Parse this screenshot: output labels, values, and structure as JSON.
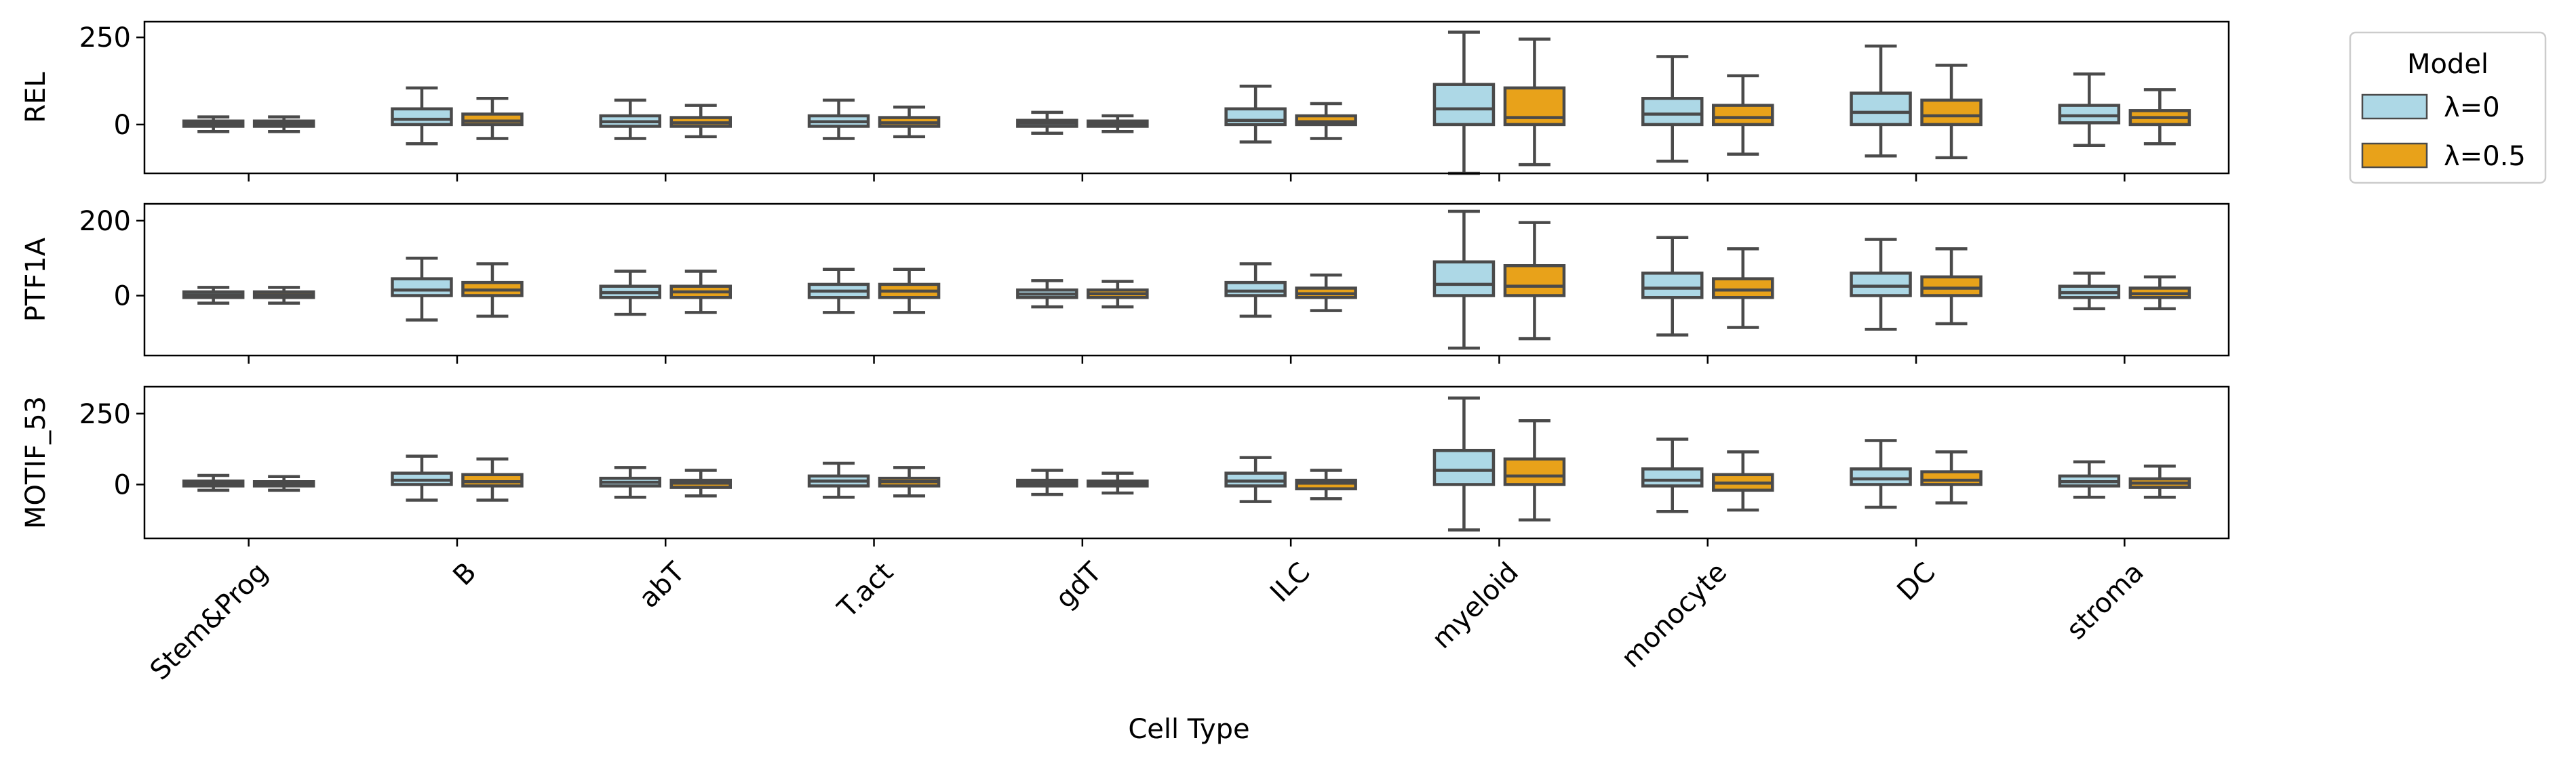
{
  "chart_data": {
    "type": "box",
    "xlabel": "Cell Type",
    "categories": [
      "Stem&Prog",
      "B",
      "abT",
      "T.act",
      "gdT",
      "ILC",
      "myeloid",
      "monocyte",
      "DC",
      "stroma"
    ],
    "legend": {
      "title": "Model",
      "position": "upper-right-outside",
      "entries": [
        {
          "label": "λ=0",
          "color": "#add8e6"
        },
        {
          "label": "λ=0.5",
          "color": "#e8a21a"
        }
      ]
    },
    "series_colors": [
      "#add8e6",
      "#e8a21a"
    ],
    "panels": [
      {
        "ylabel": "REL",
        "ylim": [
          -140,
          295
        ],
        "yticks": [
          0,
          250
        ],
        "boxes": [
          [
            [
              -20,
              -5,
              2,
              10,
              22
            ],
            [
              -20,
              -5,
              2,
              10,
              22
            ]
          ],
          [
            [
              -55,
              0,
              15,
              45,
              105
            ],
            [
              -40,
              0,
              10,
              30,
              75
            ]
          ],
          [
            [
              -40,
              -5,
              8,
              25,
              70
            ],
            [
              -35,
              -5,
              5,
              20,
              55
            ]
          ],
          [
            [
              -40,
              -5,
              8,
              25,
              70
            ],
            [
              -35,
              -5,
              5,
              20,
              50
            ]
          ],
          [
            [
              -25,
              -5,
              4,
              12,
              35
            ],
            [
              -20,
              -5,
              3,
              10,
              25
            ]
          ],
          [
            [
              -50,
              0,
              12,
              45,
              110
            ],
            [
              -40,
              0,
              8,
              25,
              60
            ]
          ],
          [
            [
              -140,
              0,
              45,
              115,
              265
            ],
            [
              -115,
              0,
              20,
              105,
              245
            ]
          ],
          [
            [
              -105,
              0,
              30,
              75,
              195
            ],
            [
              -85,
              0,
              20,
              55,
              140
            ]
          ],
          [
            [
              -90,
              0,
              35,
              90,
              225
            ],
            [
              -95,
              0,
              25,
              70,
              170
            ]
          ],
          [
            [
              -60,
              5,
              25,
              55,
              145
            ],
            [
              -55,
              0,
              20,
              40,
              100
            ]
          ]
        ]
      },
      {
        "ylabel": "PTF1A",
        "ylim": [
          -160,
          245
        ],
        "yticks": [
          0,
          200
        ],
        "boxes": [
          [
            [
              -20,
              -5,
              2,
              10,
              22
            ],
            [
              -20,
              -5,
              2,
              10,
              22
            ]
          ],
          [
            [
              -65,
              0,
              15,
              45,
              100
            ],
            [
              -55,
              0,
              15,
              35,
              85
            ]
          ],
          [
            [
              -50,
              -5,
              8,
              25,
              65
            ],
            [
              -45,
              -5,
              10,
              25,
              65
            ]
          ],
          [
            [
              -45,
              -5,
              12,
              30,
              70
            ],
            [
              -45,
              -5,
              12,
              30,
              70
            ]
          ],
          [
            [
              -30,
              -5,
              4,
              15,
              40
            ],
            [
              -30,
              -5,
              5,
              15,
              38
            ]
          ],
          [
            [
              -55,
              0,
              12,
              35,
              85
            ],
            [
              -40,
              -5,
              5,
              20,
              55
            ]
          ],
          [
            [
              -140,
              0,
              30,
              90,
              225
            ],
            [
              -115,
              0,
              25,
              80,
              195
            ]
          ],
          [
            [
              -105,
              -5,
              20,
              60,
              155
            ],
            [
              -85,
              -5,
              15,
              45,
              125
            ]
          ],
          [
            [
              -90,
              0,
              25,
              60,
              150
            ],
            [
              -75,
              0,
              20,
              50,
              125
            ]
          ],
          [
            [
              -35,
              -5,
              8,
              25,
              60
            ],
            [
              -35,
              -5,
              5,
              20,
              50
            ]
          ]
        ]
      },
      {
        "ylabel": "MOTIF_53",
        "ylim": [
          -190,
          345
        ],
        "yticks": [
          0,
          250
        ],
        "boxes": [
          [
            [
              -20,
              -5,
              5,
              12,
              32
            ],
            [
              -20,
              -5,
              3,
              10,
              28
            ]
          ],
          [
            [
              -55,
              0,
              15,
              40,
              100
            ],
            [
              -55,
              -5,
              10,
              35,
              90
            ]
          ],
          [
            [
              -45,
              -5,
              8,
              22,
              60
            ],
            [
              -40,
              -10,
              5,
              15,
              50
            ]
          ],
          [
            [
              -45,
              -5,
              12,
              30,
              75
            ],
            [
              -40,
              -5,
              10,
              22,
              60
            ]
          ],
          [
            [
              -35,
              -5,
              5,
              15,
              50
            ],
            [
              -30,
              -5,
              5,
              12,
              40
            ]
          ],
          [
            [
              -60,
              -5,
              12,
              40,
              95
            ],
            [
              -50,
              -15,
              5,
              15,
              50
            ]
          ],
          [
            [
              -160,
              0,
              50,
              120,
              305
            ],
            [
              -125,
              0,
              30,
              90,
              225
            ]
          ],
          [
            [
              -95,
              -5,
              15,
              55,
              160
            ],
            [
              -90,
              -20,
              5,
              35,
              115
            ]
          ],
          [
            [
              -80,
              0,
              20,
              55,
              155
            ],
            [
              -65,
              0,
              15,
              45,
              115
            ]
          ],
          [
            [
              -45,
              -5,
              10,
              30,
              80
            ],
            [
              -45,
              -10,
              5,
              20,
              65
            ]
          ]
        ]
      }
    ]
  }
}
